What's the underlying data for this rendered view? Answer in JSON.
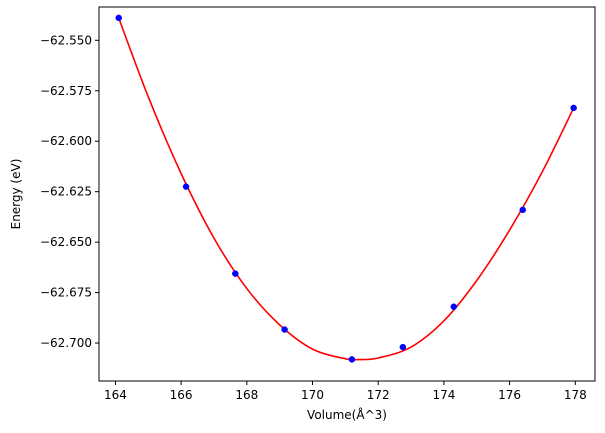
{
  "chart_data": {
    "type": "scatter",
    "title": "",
    "xlabel": "Volume(Å^3)",
    "ylabel": "Energy (eV)",
    "xlim": [
      163.5,
      178.6
    ],
    "ylim": [
      -62.7188,
      -62.5335
    ],
    "x_ticks": [
      164,
      166,
      168,
      170,
      172,
      174,
      176,
      178
    ],
    "x_tick_labels": [
      "164",
      "166",
      "168",
      "170",
      "172",
      "174",
      "176",
      "178"
    ],
    "y_ticks": [
      -62.7,
      -62.675,
      -62.65,
      -62.625,
      -62.6,
      -62.575,
      -62.55
    ],
    "y_tick_labels": [
      "−62.700",
      "−62.675",
      "−62.650",
      "−62.625",
      "−62.600",
      "−62.575",
      "−62.550"
    ],
    "grid": false,
    "series": [
      {
        "kind": "points",
        "color": "#0000ff",
        "x": [
          164.1,
          166.15,
          167.65,
          169.15,
          171.2,
          172.75,
          174.3,
          176.4,
          177.95
        ],
        "y": [
          -62.5389,
          -62.6225,
          -62.6656,
          -62.6933,
          -62.7081,
          -62.702,
          -62.682,
          -62.634,
          -62.5835
        ]
      },
      {
        "kind": "fit-curve",
        "color": "#ff0000",
        "x": [
          164.1,
          165.0,
          166.0,
          167.0,
          168.0,
          169.0,
          170.0,
          171.0,
          171.4,
          172.0,
          173.0,
          174.0,
          175.0,
          176.0,
          177.0,
          177.95
        ],
        "y": [
          -62.5389,
          -62.578,
          -62.616,
          -62.648,
          -62.673,
          -62.691,
          -62.703,
          -62.7078,
          -62.7082,
          -62.7074,
          -62.702,
          -62.689,
          -62.669,
          -62.644,
          -62.615,
          -62.5835
        ]
      }
    ]
  }
}
